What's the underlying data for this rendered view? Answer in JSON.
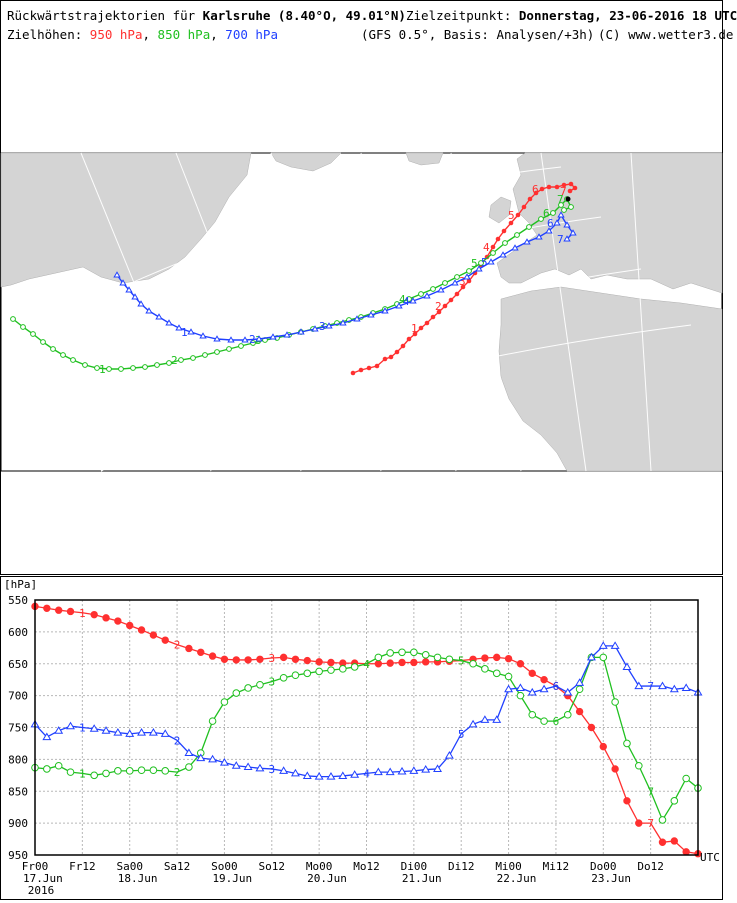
{
  "header": {
    "title_prefix": "Rückwärtstrajektorien für ",
    "location": "Karlsruhe (8.40°O, 49.01°N)",
    "target_time_label": "Zielzeitpunkt: ",
    "target_time": "Donnerstag, 23-06-2016  18 UTC",
    "levels_label": "Zielhöhen: ",
    "levels": [
      {
        "text": "950 hPa",
        "color": "#ff3030"
      },
      {
        "text": "850 hPa",
        "color": "#20c020"
      },
      {
        "text": "700 hPa",
        "color": "#2040ff"
      }
    ],
    "model_info": "(GFS 0.5°, Basis: Analysen/+3h)",
    "copyright": "(C) www.wetter3.de"
  },
  "map": {
    "ocean_color": "#ffffff",
    "land_color": "#d4d4d4",
    "trajectories": [
      {
        "level": "950 hPa",
        "color": "#ff3030",
        "marker": "filled-circle",
        "day_labels": [
          "1",
          "2",
          "3",
          "4",
          "5",
          "6",
          "7"
        ]
      },
      {
        "level": "850 hPa",
        "color": "#20c020",
        "marker": "open-circle",
        "day_labels": [
          "1",
          "2",
          "3",
          "4",
          "5",
          "6",
          "7"
        ]
      },
      {
        "level": "700 hPa",
        "color": "#2040ff",
        "marker": "open-triangle",
        "day_labels": [
          "1",
          "2",
          "3",
          "4",
          "5",
          "6",
          "7"
        ]
      }
    ]
  },
  "chart_data": {
    "type": "line",
    "unit_label": "[hPa]",
    "y_inverted": true,
    "ylim": [
      950,
      550
    ],
    "yticks": [
      "550",
      "600",
      "650",
      "700",
      "750",
      "800",
      "850",
      "900",
      "950"
    ],
    "x": [
      0,
      3,
      6,
      9,
      12,
      15,
      18,
      21,
      24,
      27,
      30,
      33,
      36,
      39,
      42,
      45,
      48,
      51,
      54,
      57,
      60,
      63,
      66,
      69,
      72,
      75,
      78,
      81,
      84,
      87,
      90,
      93,
      96,
      99,
      102,
      105,
      108,
      111,
      114,
      117,
      120,
      123,
      126,
      129,
      132,
      135,
      138,
      141,
      144,
      147,
      150,
      153,
      156,
      159,
      162,
      165,
      168
    ],
    "x_unit": "hours from 17.Jun 00 UTC",
    "xticks_top": [
      "Fr00",
      "Fr12",
      "Sa00",
      "Sa12",
      "So00",
      "So12",
      "Mo00",
      "Mo12",
      "Di00",
      "Di12",
      "Mi00",
      "Mi12",
      "Do00",
      "Do12"
    ],
    "xticks_bottom": [
      "17.Jun",
      "18.Jun",
      "19.Jun",
      "20.Jun",
      "21.Jun",
      "22.Jun",
      "23.Jun"
    ],
    "year_label": "2016",
    "utc_label": "UTC",
    "grid": true,
    "series": [
      {
        "name": "950 hPa",
        "color": "#ff3030",
        "marker": "filled-circle",
        "labels": [
          "1",
          "2",
          "3",
          "4",
          "5",
          "6",
          "7"
        ],
        "values": [
          560,
          563,
          566,
          568,
          570,
          573,
          578,
          583,
          590,
          597,
          605,
          613,
          620,
          626,
          632,
          638,
          643,
          644,
          644,
          643,
          641,
          640,
          643,
          645,
          647,
          648,
          649,
          649,
          650,
          650,
          649,
          648,
          648,
          647,
          647,
          646,
          645,
          643,
          641,
          640,
          642,
          650,
          665,
          675,
          685,
          700,
          725,
          750,
          780,
          815,
          865,
          900,
          900,
          930,
          928,
          945,
          948
        ]
      },
      {
        "name": "850 hPa",
        "color": "#20c020",
        "marker": "open-circle",
        "labels": [
          "1",
          "2",
          "3",
          "4",
          "5",
          "6",
          "7"
        ],
        "values": [
          813,
          815,
          810,
          820,
          822,
          825,
          822,
          818,
          818,
          817,
          817,
          818,
          820,
          812,
          790,
          740,
          710,
          696,
          688,
          683,
          678,
          672,
          668,
          665,
          662,
          660,
          658,
          655,
          650,
          640,
          633,
          632,
          632,
          636,
          640,
          643,
          645,
          650,
          658,
          665,
          670,
          700,
          730,
          740,
          740,
          730,
          690,
          640,
          640,
          710,
          775,
          810,
          850,
          895,
          865,
          830,
          845
        ]
      },
      {
        "name": "700 hPa",
        "color": "#2040ff",
        "marker": "open-triangle",
        "labels": [
          "1",
          "2",
          "3",
          "4",
          "5",
          "6",
          "7"
        ],
        "values": [
          745,
          765,
          755,
          748,
          750,
          752,
          755,
          758,
          760,
          758,
          758,
          760,
          770,
          790,
          798,
          800,
          805,
          810,
          812,
          814,
          815,
          818,
          822,
          826,
          827,
          827,
          826,
          824,
          822,
          820,
          820,
          819,
          818,
          816,
          815,
          794,
          760,
          745,
          738,
          738,
          690,
          688,
          695,
          690,
          685,
          695,
          680,
          640,
          622,
          622,
          655,
          685,
          685,
          685,
          690,
          688,
          695
        ]
      }
    ]
  }
}
